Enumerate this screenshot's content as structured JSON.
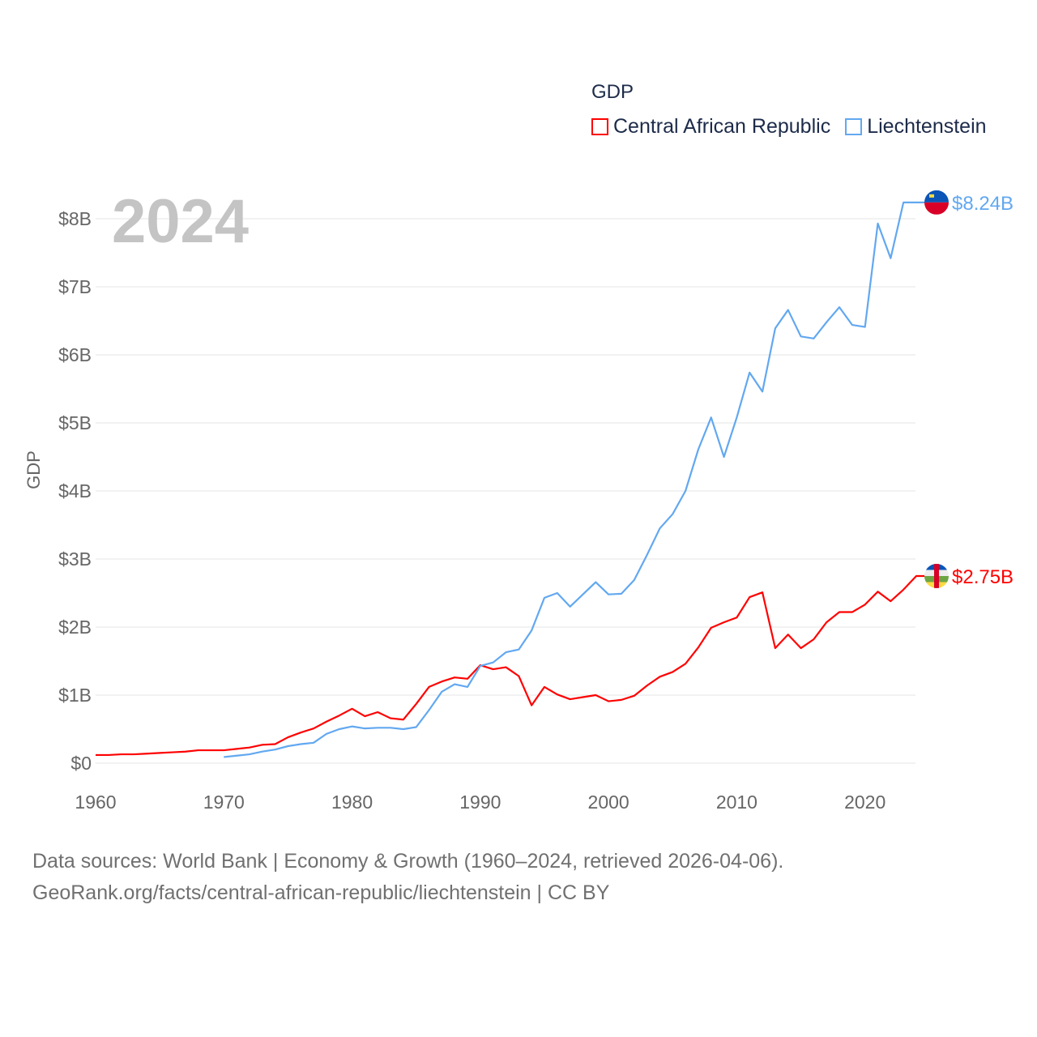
{
  "legend": {
    "title": "GDP",
    "items": [
      {
        "label": "Central African Republic",
        "color": "#ff0000"
      },
      {
        "label": "Liechtenstein",
        "color": "#62a8f0"
      }
    ]
  },
  "year_label": "2024",
  "source": {
    "line1": "Data sources: World Bank | Economy & Growth (1960–2024, retrieved 2026-04-06).",
    "line2": "GeoRank.org/facts/central-african-republic/liechtenstein | CC BY"
  },
  "chart_data": {
    "type": "line",
    "title": "GDP",
    "xlabel": "",
    "ylabel": "GDP",
    "xlim": [
      1960,
      2024
    ],
    "ylim": [
      0,
      8
    ],
    "grid": true,
    "legend_placement": "top-right",
    "x_ticks": [
      "1960",
      "1970",
      "1980",
      "1990",
      "2000",
      "2010",
      "2020"
    ],
    "y_ticks": [
      "$0",
      "$1B",
      "$2B",
      "$3B",
      "$4B",
      "$5B",
      "$6B",
      "$7B",
      "$8B"
    ],
    "series": [
      {
        "name": "Central African Republic",
        "color": "#ff0000",
        "end_label": "$2.75B",
        "start_year": 1960,
        "values": [
          0.12,
          0.12,
          0.13,
          0.13,
          0.14,
          0.15,
          0.16,
          0.17,
          0.19,
          0.19,
          0.19,
          0.21,
          0.23,
          0.27,
          0.28,
          0.38,
          0.45,
          0.51,
          0.61,
          0.7,
          0.8,
          0.69,
          0.75,
          0.66,
          0.64,
          0.87,
          1.12,
          1.2,
          1.26,
          1.24,
          1.44,
          1.38,
          1.41,
          1.28,
          0.85,
          1.12,
          1.01,
          0.94,
          0.97,
          1.0,
          0.91,
          0.93,
          0.99,
          1.14,
          1.27,
          1.34,
          1.46,
          1.7,
          1.99,
          2.07,
          2.14,
          2.44,
          2.51,
          1.69,
          1.89,
          1.69,
          1.82,
          2.07,
          2.22,
          2.22,
          2.33,
          2.52,
          2.38,
          2.55,
          2.75
        ]
      },
      {
        "name": "Liechtenstein",
        "color": "#62a8f0",
        "end_label": "$8.24B",
        "start_year": 1970,
        "values": [
          0.09,
          0.11,
          0.13,
          0.17,
          0.2,
          0.25,
          0.28,
          0.3,
          0.43,
          0.5,
          0.54,
          0.51,
          0.52,
          0.52,
          0.5,
          0.53,
          0.78,
          1.05,
          1.16,
          1.12,
          1.43,
          1.48,
          1.63,
          1.67,
          1.95,
          2.43,
          2.5,
          2.3,
          2.48,
          2.66,
          2.48,
          2.49,
          2.69,
          3.06,
          3.45,
          3.66,
          4.0,
          4.61,
          5.08,
          4.5,
          5.08,
          5.74,
          5.46,
          6.39,
          6.66,
          6.27,
          6.24,
          6.48,
          6.7,
          6.44,
          6.41,
          7.93,
          7.42,
          8.24,
          8.24
        ]
      }
    ]
  }
}
